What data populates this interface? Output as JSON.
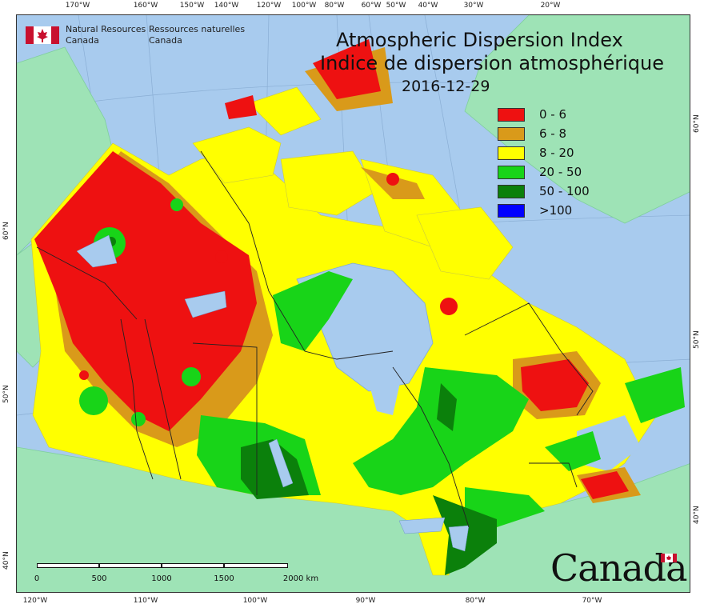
{
  "map": {
    "title_en": "Atmospheric Dispersion Index",
    "title_fr": "Indice de dispersion atmosphérique",
    "date": "2016-12-29",
    "agency": {
      "name_en": "Natural Resources",
      "name_en2": "Canada",
      "name_fr": "Ressources naturelles",
      "name_fr2": "Canada"
    },
    "wordmark": "Canada",
    "top_ticks": [
      "170°W",
      "160°W",
      "150°W",
      "140°W",
      "120°W",
      "100°W",
      "80°W",
      "60°W",
      "50°W",
      "40°W",
      "30°W",
      "20°W"
    ],
    "bottom_ticks": [
      "120°W",
      "110°W",
      "100°W",
      "90°W",
      "80°W",
      "70°W"
    ],
    "right_ticks": [
      "60°N",
      "50°N",
      "40°N"
    ],
    "left_ticks": [
      "60°N",
      "50°N",
      "40°N"
    ],
    "scale": {
      "labels": [
        "0",
        "500",
        "1000",
        "1500",
        "2000 km"
      ]
    },
    "colors": {
      "ocean": "#a8cbee",
      "land_outside": "#9ee3b6",
      "class_0_6": "#ee1111",
      "class_6_8": "#d99a1a",
      "class_8_20": "#ffff00",
      "class_20_50": "#18d418",
      "class_50_100": "#0b800b",
      "class_100": "#0000ff"
    }
  },
  "legend": [
    {
      "label": "0 - 6",
      "color": "#ee1111"
    },
    {
      "label": "6 - 8",
      "color": "#d99a1a"
    },
    {
      "label": "8 - 20",
      "color": "#ffff00"
    },
    {
      "label": "20 - 50",
      "color": "#18d418"
    },
    {
      "label": "50 - 100",
      "color": "#0b800b"
    },
    {
      "label": ">100",
      "color": "#0000ff"
    }
  ]
}
